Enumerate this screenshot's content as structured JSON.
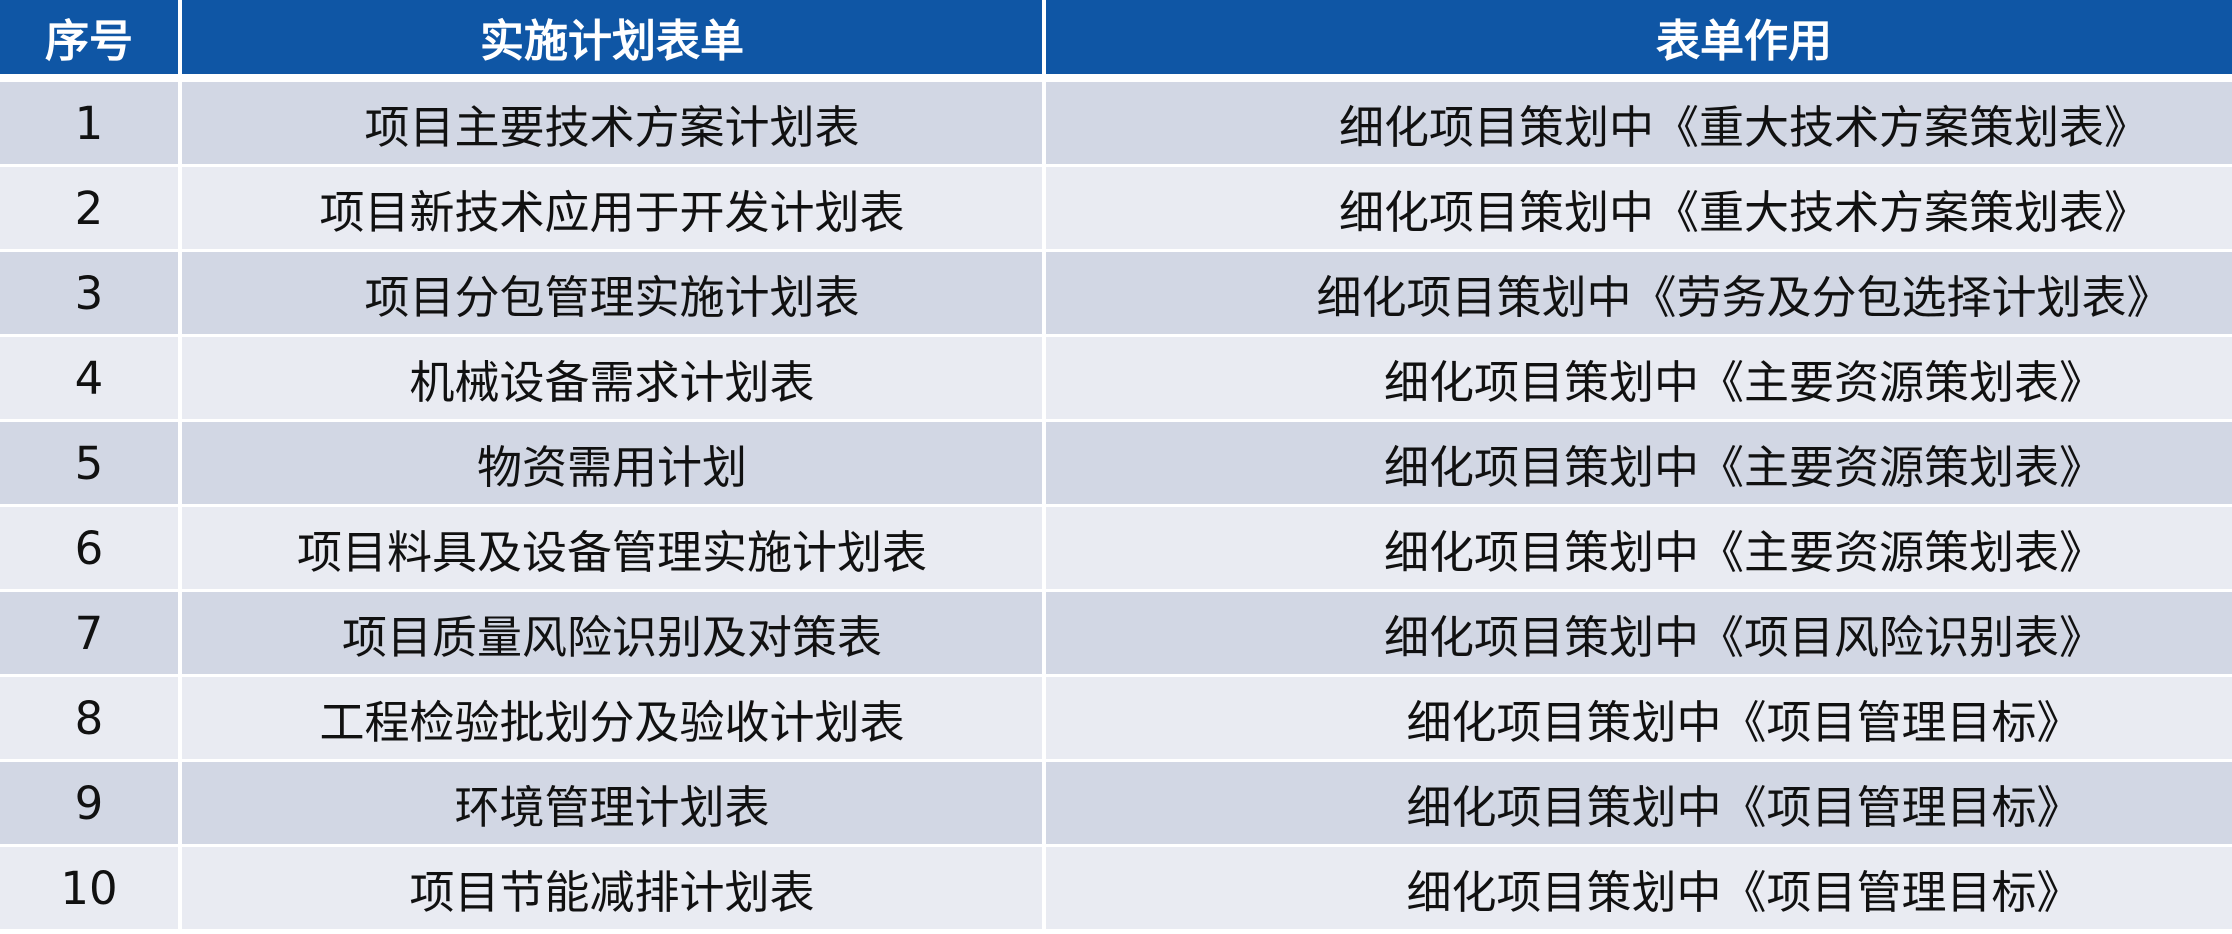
{
  "header": {
    "col_index": "序号",
    "col_form": "实施计划表单",
    "col_purpose": "表单作用"
  },
  "colors": {
    "header_bg": "#0f56a5",
    "row_odd": "#d2d7e4",
    "row_even": "#e9ebf2"
  },
  "rows": [
    {
      "index": "1",
      "form": "项目主要技术方案计划表",
      "purpose": "细化项目策划中《重大技术方案策划表》"
    },
    {
      "index": "2",
      "form": "项目新技术应用于开发计划表",
      "purpose": "细化项目策划中《重大技术方案策划表》"
    },
    {
      "index": "3",
      "form": "项目分包管理实施计划表",
      "purpose": "细化项目策划中《劳务及分包选择计划表》"
    },
    {
      "index": "4",
      "form": "机械设备需求计划表",
      "purpose": "细化项目策划中《主要资源策划表》"
    },
    {
      "index": "5",
      "form": "物资需用计划",
      "purpose": "细化项目策划中《主要资源策划表》"
    },
    {
      "index": "6",
      "form": "项目料具及设备管理实施计划表",
      "purpose": "细化项目策划中《主要资源策划表》"
    },
    {
      "index": "7",
      "form": "项目质量风险识别及对策表",
      "purpose": "细化项目策划中《项目风险识别表》"
    },
    {
      "index": "8",
      "form": "工程检验批划分及验收计划表",
      "purpose": "细化项目策划中《项目管理目标》"
    },
    {
      "index": "9",
      "form": "环境管理计划表",
      "purpose": "细化项目策划中《项目管理目标》"
    },
    {
      "index": "10",
      "form": "项目节能减排计划表",
      "purpose": "细化项目策划中《项目管理目标》"
    }
  ]
}
